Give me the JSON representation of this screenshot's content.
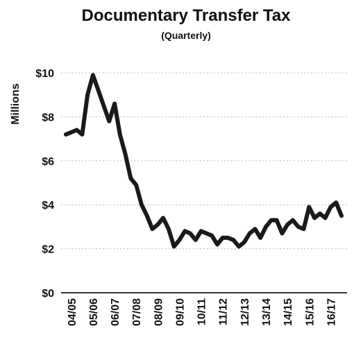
{
  "chart_data": {
    "type": "line",
    "title": "Documentary Transfer Tax",
    "subtitle": "(Quarterly)",
    "y_label": "Millions",
    "categories": [
      null,
      "04/05",
      null,
      null,
      null,
      "05/06",
      null,
      null,
      null,
      "06/07",
      null,
      null,
      null,
      "07/08",
      null,
      null,
      null,
      "08/09",
      null,
      null,
      null,
      "09/10",
      null,
      null,
      null,
      "10/11",
      null,
      null,
      null,
      "11/12",
      null,
      null,
      null,
      "12/13",
      null,
      null,
      null,
      "13/14",
      null,
      null,
      null,
      "14/15",
      null,
      null,
      null,
      "15/16",
      null,
      null,
      null,
      "16/17",
      null,
      null
    ],
    "series": [
      {
        "name": "Documentary Transfer Tax",
        "color": "#1a1a1a",
        "values": [
          7.2,
          7.3,
          7.4,
          7.2,
          9.0,
          9.9,
          9.2,
          8.5,
          7.8,
          8.6,
          7.2,
          6.3,
          5.2,
          4.9,
          4.0,
          3.5,
          2.9,
          3.1,
          3.4,
          2.9,
          2.1,
          2.4,
          2.8,
          2.7,
          2.4,
          2.8,
          2.7,
          2.6,
          2.2,
          2.5,
          2.5,
          2.4,
          2.1,
          2.3,
          2.7,
          2.9,
          2.5,
          3.0,
          3.3,
          3.3,
          2.7,
          3.1,
          3.3,
          3.0,
          2.9,
          3.9,
          3.4,
          3.6,
          3.4,
          3.9,
          4.1,
          3.5
        ]
      }
    ],
    "ylim": [
      0,
      10
    ],
    "yticks": [
      {
        "value": 0,
        "label": "$0"
      },
      {
        "value": 2,
        "label": "$2"
      },
      {
        "value": 4,
        "label": "$4"
      },
      {
        "value": 6,
        "label": "$6"
      },
      {
        "value": 8,
        "label": "$8"
      },
      {
        "value": 10,
        "label": "$10"
      }
    ],
    "grid": true
  }
}
